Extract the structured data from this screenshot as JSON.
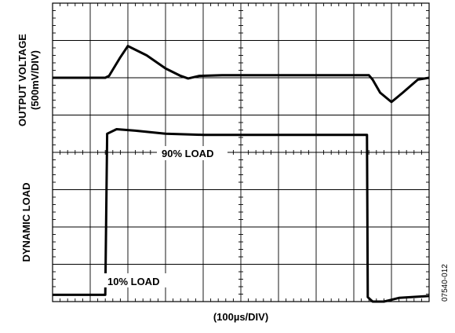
{
  "chart_data": {
    "type": "line",
    "ylabel_top_line1": "OUTPUT VOLTAGE",
    "ylabel_top_line2": "(500mV/DIV)",
    "ylabel_bottom": "DYNAMIC LOAD",
    "xlabel": "(100µs/DIV)",
    "annotations": [
      "90% LOAD",
      "10% LOAD"
    ],
    "figure_id": "07540-012",
    "grid": true,
    "divisions": {
      "x": 10,
      "y": 8
    },
    "x_range_div": [
      0,
      10
    ],
    "y_range_div": [
      0,
      8
    ],
    "series": [
      {
        "name": "OUTPUT VOLTAGE",
        "x": [
          0,
          0.5,
          1.4,
          1.5,
          1.8,
          2.0,
          2.5,
          3.0,
          3.4,
          3.6,
          3.9,
          4.5,
          6.0,
          8.4,
          8.5,
          8.7,
          9.0,
          9.3,
          9.7,
          10.0
        ],
        "y": [
          6.0,
          6.0,
          6.0,
          6.05,
          6.55,
          6.85,
          6.6,
          6.25,
          6.05,
          5.98,
          6.05,
          6.07,
          6.07,
          6.07,
          5.95,
          5.6,
          5.35,
          5.6,
          5.95,
          6.0
        ]
      },
      {
        "name": "DYNAMIC LOAD",
        "x": [
          0,
          1.38,
          1.4,
          1.45,
          1.7,
          2.2,
          3.0,
          4.0,
          6.0,
          8.35,
          8.37,
          8.5,
          8.8,
          9.2,
          10.0
        ],
        "y": [
          0.18,
          0.18,
          0.18,
          4.5,
          4.62,
          4.58,
          4.5,
          4.47,
          4.47,
          4.47,
          0.12,
          0.0,
          0.0,
          0.1,
          0.15
        ]
      }
    ]
  }
}
